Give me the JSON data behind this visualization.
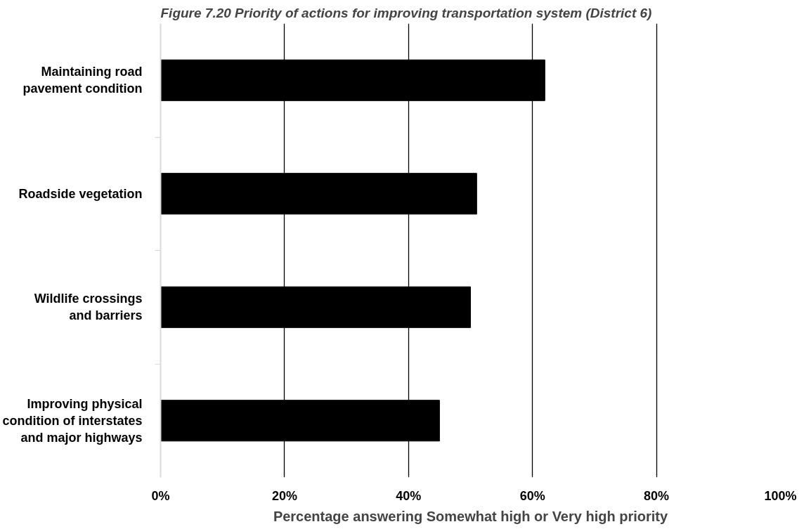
{
  "chart_data": {
    "type": "bar",
    "orientation": "horizontal",
    "title": "Figure 7.20 Priority of actions for improving transportation system (District 6)",
    "xlabel": "Percentage answering Somewhat high or Very high priority",
    "categories": [
      "Maintaining road\npavement condition",
      "Roadside vegetation",
      "Wildlife crossings\nand barriers",
      "Improving physical\ncondition of interstates\nand major highways"
    ],
    "values": [
      62,
      51,
      50,
      45
    ],
    "color": "#000000",
    "xlim": [
      0,
      100
    ],
    "xticks": [
      {
        "value": 0,
        "label": "0%"
      },
      {
        "value": 20,
        "label": "20%"
      },
      {
        "value": 40,
        "label": "40%"
      },
      {
        "value": 60,
        "label": "60%"
      },
      {
        "value": 80,
        "label": "80%"
      },
      {
        "value": 100,
        "label": "100%"
      }
    ],
    "grid": "x"
  }
}
